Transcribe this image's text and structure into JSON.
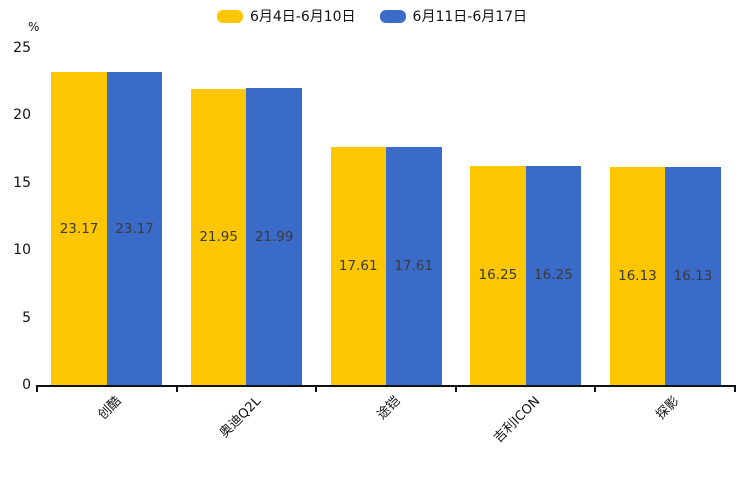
{
  "chart_data": {
    "type": "bar",
    "title": "",
    "categories": [
      "创酷",
      "奥迪Q2L",
      "途铠",
      "吉利ICON",
      "探影"
    ],
    "series": [
      {
        "name": "6月4日-6月10日",
        "color": "#FCC602",
        "values": [
          23.17,
          21.95,
          17.61,
          16.25,
          16.13
        ]
      },
      {
        "name": "6月11日-6月17日",
        "color": "#3A6BC8",
        "values": [
          23.17,
          21.99,
          17.61,
          16.25,
          16.13
        ]
      }
    ],
    "xlabel": "",
    "ylabel": "%",
    "ylim": [
      0,
      25
    ],
    "yticks": [
      0,
      5,
      10,
      15,
      20,
      25
    ],
    "grid": false,
    "legend_position": "top-center",
    "bar_value_labels": true,
    "bar_label_color": "#3A3A3A",
    "axis_color": "#111111",
    "xtick_style": "category-boundary",
    "xlabel_rotation_deg": 45
  }
}
